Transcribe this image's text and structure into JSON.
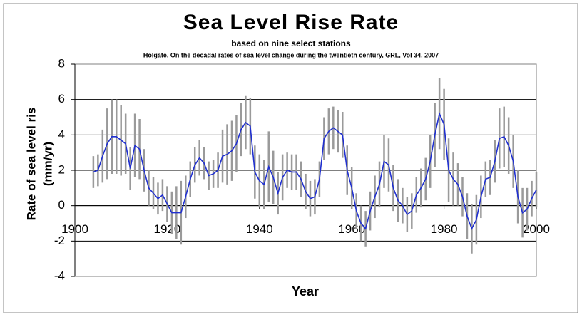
{
  "chart_data": {
    "type": "line_errorbar",
    "title": "Sea Level Rise Rate",
    "subtitle": "based on nine select stations",
    "source": "Holgate, On the decadal rates of sea level change during the twentieth century, GRL, Vol 34, 2007",
    "xlabel": "Year",
    "ylabel_lines": [
      "Rate of sea level ris",
      "(mm/yr)"
    ],
    "x": [
      1904,
      1905,
      1906,
      1907,
      1908,
      1909,
      1910,
      1911,
      1912,
      1913,
      1914,
      1915,
      1916,
      1917,
      1918,
      1919,
      1920,
      1921,
      1922,
      1923,
      1924,
      1925,
      1926,
      1927,
      1928,
      1929,
      1930,
      1931,
      1932,
      1933,
      1934,
      1935,
      1936,
      1937,
      1938,
      1939,
      1940,
      1941,
      1942,
      1943,
      1944,
      1945,
      1946,
      1947,
      1948,
      1949,
      1950,
      1951,
      1952,
      1953,
      1954,
      1955,
      1956,
      1957,
      1958,
      1959,
      1960,
      1961,
      1962,
      1963,
      1964,
      1965,
      1966,
      1967,
      1968,
      1969,
      1970,
      1971,
      1972,
      1973,
      1974,
      1975,
      1976,
      1977,
      1978,
      1979,
      1980,
      1981,
      1982,
      1983,
      1984,
      1985,
      1986,
      1987,
      1988,
      1989,
      1990,
      1991,
      1992,
      1993,
      1994,
      1995,
      1996,
      1997,
      1998,
      1999,
      2000
    ],
    "values": [
      1.9,
      2.0,
      2.8,
      3.5,
      3.9,
      3.9,
      3.7,
      3.5,
      2.1,
      3.4,
      3.2,
      2.0,
      1.0,
      0.7,
      0.4,
      0.6,
      0.1,
      -0.4,
      -0.4,
      -0.4,
      0.5,
      1.5,
      2.3,
      2.7,
      2.4,
      1.7,
      1.8,
      2.0,
      2.8,
      2.9,
      3.1,
      3.5,
      4.3,
      4.7,
      4.5,
      1.9,
      1.4,
      1.2,
      2.2,
      1.6,
      0.7,
      1.6,
      2.0,
      1.9,
      1.9,
      1.5,
      0.8,
      0.4,
      0.5,
      1.5,
      3.8,
      4.2,
      4.4,
      4.2,
      4.0,
      2.0,
      1.0,
      -0.3,
      -1.0,
      -1.3,
      -0.3,
      0.5,
      1.2,
      2.5,
      2.3,
      1.0,
      0.3,
      0.0,
      -0.5,
      -0.3,
      0.6,
      1.0,
      1.5,
      2.5,
      4.0,
      5.2,
      4.6,
      2.0,
      1.5,
      1.2,
      0.5,
      -0.6,
      -1.3,
      -0.8,
      0.5,
      1.5,
      1.6,
      2.5,
      3.8,
      3.9,
      3.4,
      2.5,
      0.5,
      -0.4,
      -0.2,
      0.4,
      0.9
    ],
    "errors": [
      0.9,
      0.9,
      1.5,
      2.0,
      2.1,
      2.1,
      2.0,
      1.7,
      1.2,
      1.8,
      1.7,
      1.2,
      1.0,
      0.9,
      0.9,
      0.9,
      1.0,
      1.2,
      1.5,
      1.8,
      1.2,
      1.0,
      1.0,
      1.0,
      0.9,
      0.8,
      0.8,
      1.0,
      1.5,
      1.7,
      1.7,
      1.6,
      1.5,
      1.5,
      1.6,
      1.5,
      1.5,
      1.4,
      2.0,
      1.5,
      1.2,
      1.3,
      1.0,
      1.0,
      1.0,
      1.0,
      1.0,
      1.0,
      1.0,
      1.0,
      1.2,
      1.3,
      1.2,
      1.2,
      1.3,
      1.4,
      1.2,
      1.0,
      1.0,
      1.0,
      1.1,
      1.2,
      1.3,
      1.5,
      1.5,
      1.3,
      1.2,
      1.0,
      1.0,
      1.0,
      1.0,
      1.1,
      1.2,
      1.5,
      1.8,
      2.0,
      2.0,
      1.8,
      1.5,
      1.2,
      1.1,
      1.3,
      1.4,
      1.4,
      1.2,
      1.0,
      1.0,
      1.2,
      1.7,
      1.7,
      1.6,
      1.5,
      1.5,
      1.4,
      1.2,
      1.0,
      1.0
    ],
    "color": "#1f2fd0",
    "error_color": "#9a9a9a",
    "xlim": [
      1900,
      2000
    ],
    "xticks": [
      1900,
      1920,
      1940,
      1960,
      1980,
      2000
    ],
    "ylim": [
      -4,
      8
    ],
    "yticks": [
      8,
      6,
      4,
      2,
      0,
      -2,
      -4
    ],
    "grid": true
  }
}
